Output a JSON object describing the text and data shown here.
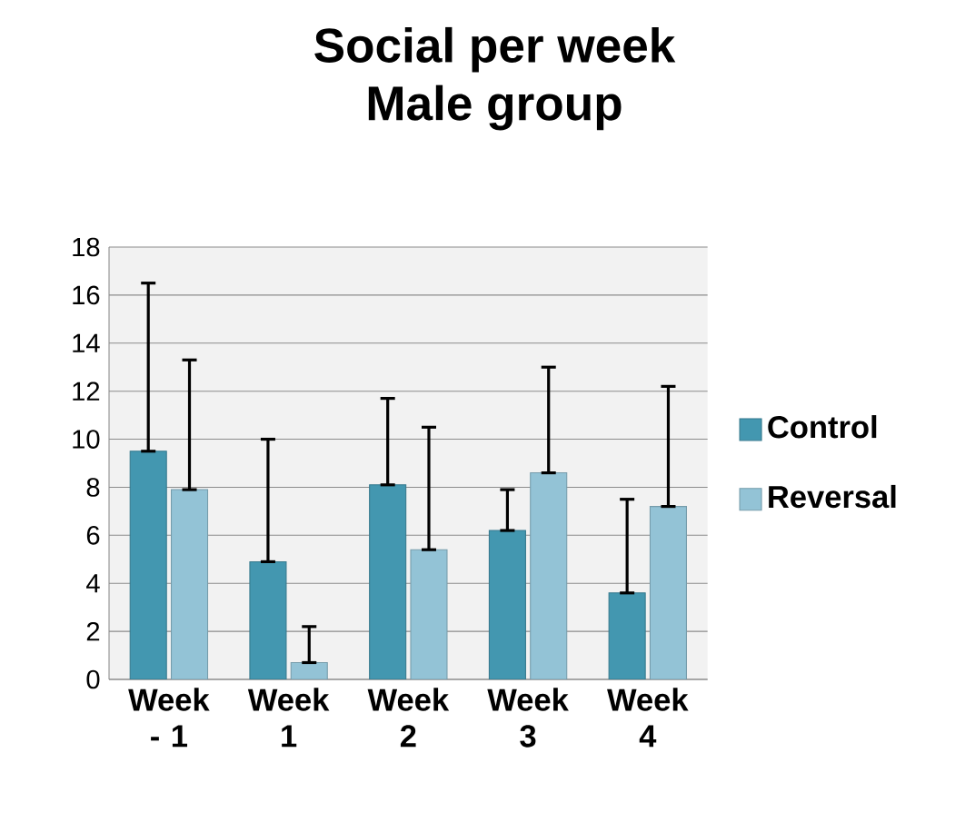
{
  "chart_data": {
    "type": "bar",
    "title": "Social per week",
    "subtitle": "Male group",
    "categories": [
      "Week - 1",
      "Week 1",
      "Week 2",
      "Week 3",
      "Week 4"
    ],
    "series": [
      {
        "name": "Control",
        "color": "#4397b0",
        "values": [
          9.5,
          4.9,
          8.1,
          6.2,
          3.6
        ],
        "errors": [
          [
            9.5,
            16.5
          ],
          [
            4.9,
            10.0
          ],
          [
            8.1,
            11.7
          ],
          [
            6.2,
            7.9
          ],
          [
            3.6,
            7.5
          ]
        ]
      },
      {
        "name": "Reversal",
        "color": "#93c3d6",
        "values": [
          7.9,
          0.7,
          5.4,
          8.6,
          7.2
        ],
        "errors": [
          [
            7.9,
            13.3
          ],
          [
            0.7,
            2.2
          ],
          [
            5.4,
            10.5
          ],
          [
            8.6,
            13.0
          ],
          [
            7.2,
            12.2
          ]
        ]
      }
    ],
    "ylim": [
      0,
      18
    ],
    "yticks": [
      0,
      2,
      4,
      6,
      8,
      10,
      12,
      14,
      16,
      18
    ],
    "grid": "y",
    "legend": "right"
  }
}
